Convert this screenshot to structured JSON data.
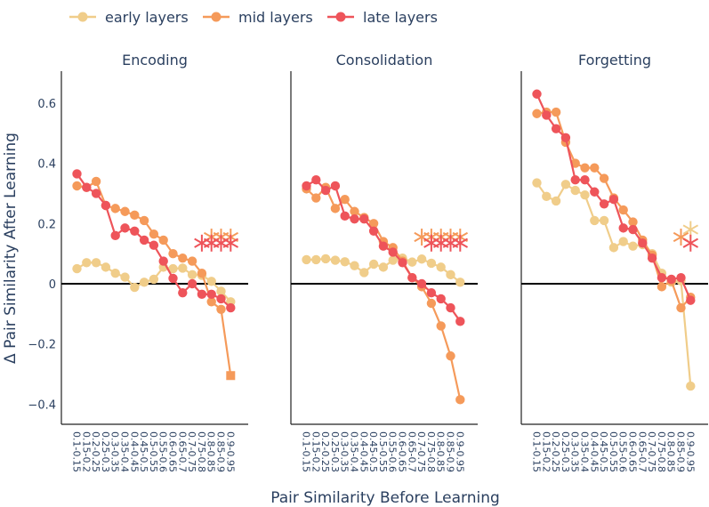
{
  "chart_data": {
    "type": "line",
    "ylabel": "Δ Pair Similarity After Learning",
    "xlabel": "Pair Similarity Before Learning",
    "ylim": [
      -0.47,
      0.7
    ],
    "yticks": [
      0.6,
      0.4,
      0.2,
      0,
      -0.2,
      -0.4
    ],
    "ytick_labels": [
      "0.6",
      "0.4",
      "0.2",
      "0",
      "−0.2",
      "−0.4"
    ],
    "categories": [
      "0.1-0.15",
      "0.15-0.2",
      "0.2-0.25",
      "0.25-0.3",
      "0.3-0.35",
      "0.35-0.4",
      "0.4-0.45",
      "0.45-0.5",
      "0.5-0.55",
      "0.55-0.6",
      "0.6-0.65",
      "0.65-0.7",
      "0.7-0.75",
      "0.75-0.8",
      "0.8-0.85",
      "0.85-0.9",
      "0.9-0.95"
    ],
    "legend": [
      {
        "name": "early layers",
        "color": "#f0cd8a"
      },
      {
        "name": "mid layers",
        "color": "#f59a5a"
      },
      {
        "name": "late layers",
        "color": "#ee545a"
      }
    ],
    "panels": [
      {
        "title": "Encoding",
        "series": [
          {
            "name": "early layers",
            "values": [
              0.05,
              0.07,
              0.07,
              0.055,
              0.035,
              0.022,
              -0.012,
              0.005,
              0.015,
              0.055,
              0.05,
              0.052,
              0.03,
              0.028,
              0.008,
              -0.025,
              -0.06
            ]
          },
          {
            "name": "mid layers",
            "values": [
              0.325,
              0.32,
              0.34,
              0.26,
              0.25,
              0.24,
              0.228,
              0.21,
              0.165,
              0.145,
              0.1,
              0.085,
              0.075,
              0.035,
              -0.06,
              -0.085,
              -0.305
            ]
          },
          {
            "name": "late layers",
            "values": [
              0.365,
              0.32,
              0.3,
              0.26,
              0.16,
              0.185,
              0.175,
              0.145,
              0.128,
              0.075,
              0.018,
              -0.03,
              0.0,
              -0.035,
              -0.035,
              -0.05,
              -0.08
            ]
          }
        ],
        "significance": [
          {
            "name": "early layers",
            "categories": []
          },
          {
            "name": "mid layers",
            "categories": [
              "0.8-0.85",
              "0.85-0.9",
              "0.9-0.95"
            ]
          },
          {
            "name": "late layers",
            "categories": [
              "0.75-0.8",
              "0.8-0.85",
              "0.85-0.9",
              "0.9-0.95"
            ]
          }
        ]
      },
      {
        "title": "Consolidation",
        "series": [
          {
            "name": "early layers",
            "values": [
              0.08,
              0.08,
              0.083,
              0.078,
              0.073,
              0.06,
              0.037,
              0.065,
              0.055,
              0.078,
              0.085,
              0.072,
              0.082,
              0.068,
              0.055,
              0.03,
              0.005
            ]
          },
          {
            "name": "mid layers",
            "values": [
              0.315,
              0.285,
              0.32,
              0.25,
              0.28,
              0.24,
              0.22,
              0.2,
              0.14,
              0.12,
              0.075,
              0.02,
              -0.01,
              -0.065,
              -0.14,
              -0.24,
              -0.385
            ]
          },
          {
            "name": "late layers",
            "values": [
              0.325,
              0.345,
              0.31,
              0.325,
              0.225,
              0.215,
              0.215,
              0.175,
              0.125,
              0.105,
              0.07,
              0.02,
              0.0,
              -0.03,
              -0.05,
              -0.08,
              -0.125
            ]
          }
        ],
        "significance": [
          {
            "name": "early layers",
            "categories": []
          },
          {
            "name": "mid layers",
            "categories": [
              "0.7-0.75",
              "0.75-0.8",
              "0.8-0.85",
              "0.85-0.9",
              "0.9-0.95"
            ]
          },
          {
            "name": "late layers",
            "categories": [
              "0.75-0.8",
              "0.8-0.85",
              "0.85-0.9",
              "0.9-0.95"
            ]
          }
        ]
      },
      {
        "title": "Forgetting",
        "series": [
          {
            "name": "early layers",
            "values": [
              0.335,
              0.29,
              0.275,
              0.33,
              0.31,
              0.295,
              0.21,
              0.21,
              0.12,
              0.14,
              0.125,
              0.13,
              0.1,
              0.035,
              0.005,
              0.01,
              -0.34
            ]
          },
          {
            "name": "mid layers",
            "values": [
              0.565,
              0.57,
              0.57,
              0.47,
              0.4,
              0.385,
              0.385,
              0.35,
              0.285,
              0.245,
              0.205,
              0.145,
              0.095,
              -0.01,
              0.01,
              -0.08,
              -0.045
            ]
          },
          {
            "name": "late layers",
            "values": [
              0.63,
              0.56,
              0.515,
              0.485,
              0.345,
              0.345,
              0.305,
              0.265,
              0.28,
              0.185,
              0.18,
              0.135,
              0.085,
              0.02,
              0.015,
              0.02,
              -0.055
            ]
          }
        ],
        "significance": [
          {
            "name": "early layers",
            "categories": [
              "0.9-0.95"
            ]
          },
          {
            "name": "mid layers",
            "categories": [
              "0.85-0.9"
            ]
          },
          {
            "name": "late layers",
            "categories": [
              "0.9-0.95"
            ]
          }
        ]
      }
    ]
  }
}
